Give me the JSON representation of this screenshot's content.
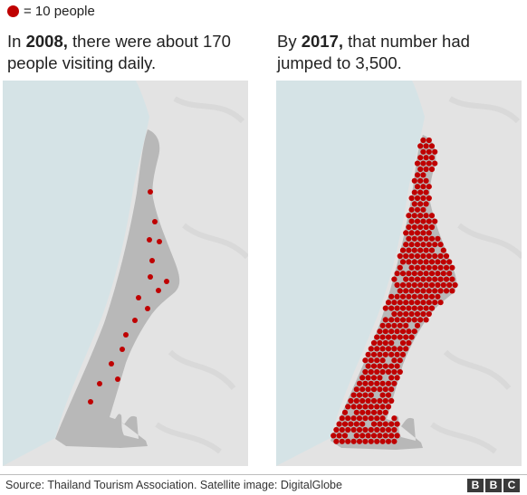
{
  "legend": {
    "dot_color": "#bf0000",
    "label": "= 10 people"
  },
  "caption_left": {
    "pre": "In ",
    "year": "2008,",
    "post": " there were about 170 people visiting daily."
  },
  "caption_right": {
    "pre": "By ",
    "year": "2017,",
    "post": " that number had jumped to 3,500."
  },
  "maps": {
    "sea_color": "#d5e3e6",
    "land_color": "#e3e3e3",
    "beach_color": "#b8b8b8",
    "left_dot_count": 17,
    "right_dot_count": 350,
    "left_dots": [
      [
        163,
        123
      ],
      [
        168,
        156
      ],
      [
        162,
        176
      ],
      [
        173,
        178
      ],
      [
        165,
        199
      ],
      [
        163,
        217
      ],
      [
        181,
        222
      ],
      [
        172,
        232
      ],
      [
        150,
        240
      ],
      [
        160,
        252
      ],
      [
        146,
        265
      ],
      [
        136,
        281
      ],
      [
        132,
        297
      ],
      [
        120,
        313
      ],
      [
        127,
        330
      ],
      [
        107,
        335
      ],
      [
        97,
        355
      ]
    ]
  },
  "source": "Source: Thailand Tourism Association. Satellite image: DigitalGlobe",
  "logo": [
    "B",
    "B",
    "C"
  ]
}
